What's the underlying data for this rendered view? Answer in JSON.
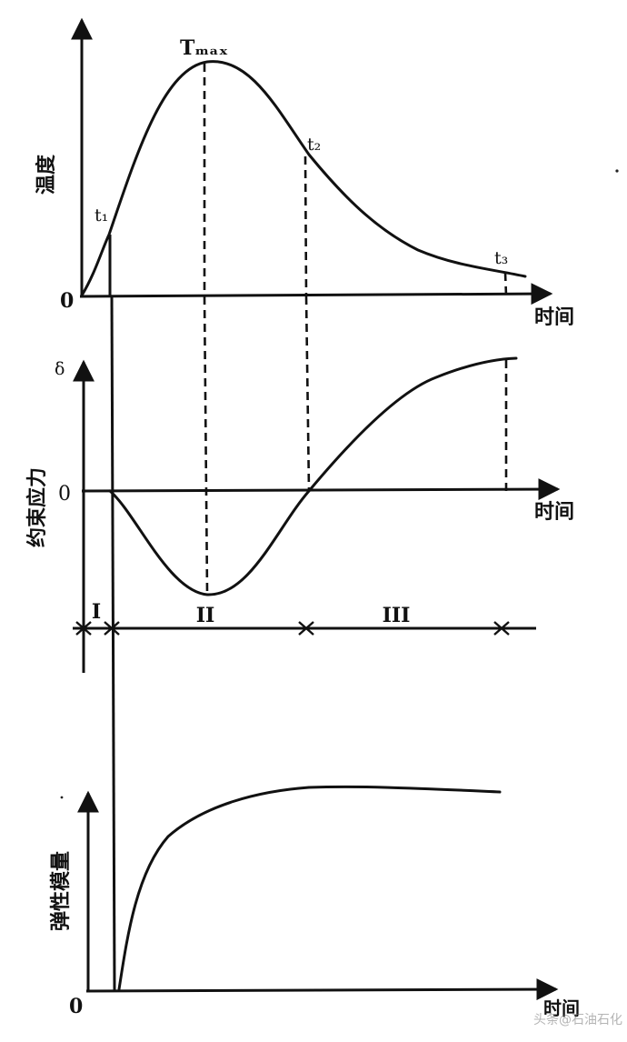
{
  "temperature_panel": {
    "ylabel": "温度",
    "xlabel": "时间",
    "origin_label": "0",
    "points": {
      "t1": "t₁",
      "tmax": "Tₘₐₓ",
      "t2": "t₂",
      "t3": "t₃"
    }
  },
  "stress_panel": {
    "ylabel": "约束应力",
    "xlabel": "时间",
    "top_label": "δ",
    "zero_label": "0"
  },
  "stages": {
    "stage1": "I",
    "stage2": "II",
    "stage3": "III"
  },
  "modulus_panel": {
    "ylabel": "弹性模量",
    "xlabel": "时间",
    "origin_label": "0"
  },
  "watermark": "头条@石油石化"
}
